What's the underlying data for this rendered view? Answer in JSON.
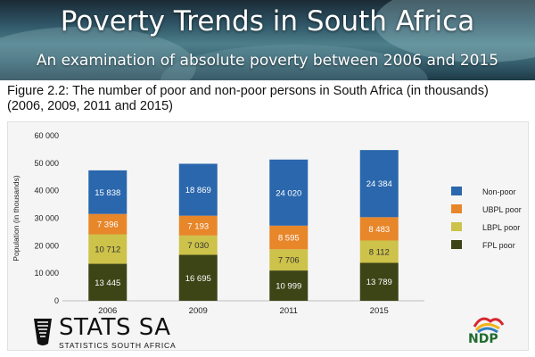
{
  "banner": {
    "title": "Poverty Trends in South Africa",
    "subtitle": "An examination of absolute poverty between 2006 and 2015"
  },
  "figure": {
    "title": "Figure 2.2: The number of poor and non-poor persons in South Africa (in thousands) (2006, 2009, 2011 and 2015)"
  },
  "chart_data": {
    "type": "bar",
    "stacked": true,
    "categories": [
      "2006",
      "2009",
      "2011",
      "2015"
    ],
    "series": [
      {
        "name": "FPL poor",
        "color": "#3d4416",
        "values": [
          13445,
          16695,
          10999,
          13789
        ],
        "labels": [
          "13 445",
          "16 695",
          "10 999",
          "13 789"
        ]
      },
      {
        "name": "LBPL poor",
        "color": "#cdc24a",
        "values": [
          10712,
          7030,
          7706,
          8112
        ],
        "labels": [
          "10 712",
          "7 030",
          "7 706",
          "8 112"
        ]
      },
      {
        "name": "UBPL poor",
        "color": "#e8862a",
        "values": [
          7396,
          7193,
          8595,
          8483
        ],
        "labels": [
          "7 396",
          "7 193",
          "8 595",
          "8 483"
        ]
      },
      {
        "name": "Non-poor",
        "color": "#2a67ad",
        "values": [
          15838,
          18869,
          24020,
          24384
        ],
        "labels": [
          "15 838",
          "18 869",
          "24 020",
          "24 384"
        ]
      }
    ],
    "ylabel": "Population (in thousands)",
    "ylim": [
      0,
      60000
    ],
    "yticks": [
      0,
      10000,
      20000,
      30000,
      40000,
      50000,
      60000
    ],
    "ytick_labels": [
      "0",
      "10 000",
      "20 000",
      "30 000",
      "40 000",
      "50 000",
      "60 000"
    ],
    "legend_position": "right",
    "legend_order": [
      "Non-poor",
      "UBPL poor",
      "LBPL poor",
      "FPL poor"
    ],
    "grid": false
  },
  "footer": {
    "logo_name": "STATS SA",
    "logo_sub": "STATISTICS SOUTH AFRICA",
    "ndp_text": "NDP"
  }
}
